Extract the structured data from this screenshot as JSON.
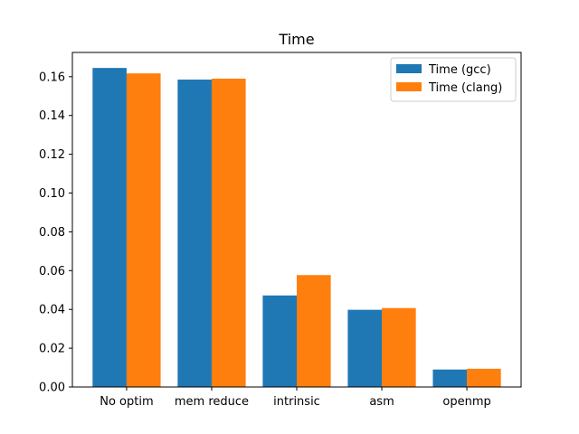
{
  "chart_data": {
    "type": "bar",
    "title": "Time",
    "xlabel": "",
    "ylabel": "",
    "categories": [
      "No optim",
      "mem reduce",
      "intrinsic",
      "asm",
      "openmp"
    ],
    "series": [
      {
        "name": "Time (gcc)",
        "color": "#1f77b4",
        "values": [
          0.1645,
          0.1585,
          0.0472,
          0.0398,
          0.009
        ]
      },
      {
        "name": "Time (clang)",
        "color": "#ff7f0e",
        "values": [
          0.1617,
          0.159,
          0.0577,
          0.0407,
          0.0094
        ]
      }
    ],
    "ylim": [
      0,
      0.1725
    ],
    "yticks": [
      "0.00",
      "0.02",
      "0.04",
      "0.06",
      "0.08",
      "0.10",
      "0.12",
      "0.14",
      "0.16"
    ],
    "grid": false,
    "legend_position": "top-right"
  }
}
